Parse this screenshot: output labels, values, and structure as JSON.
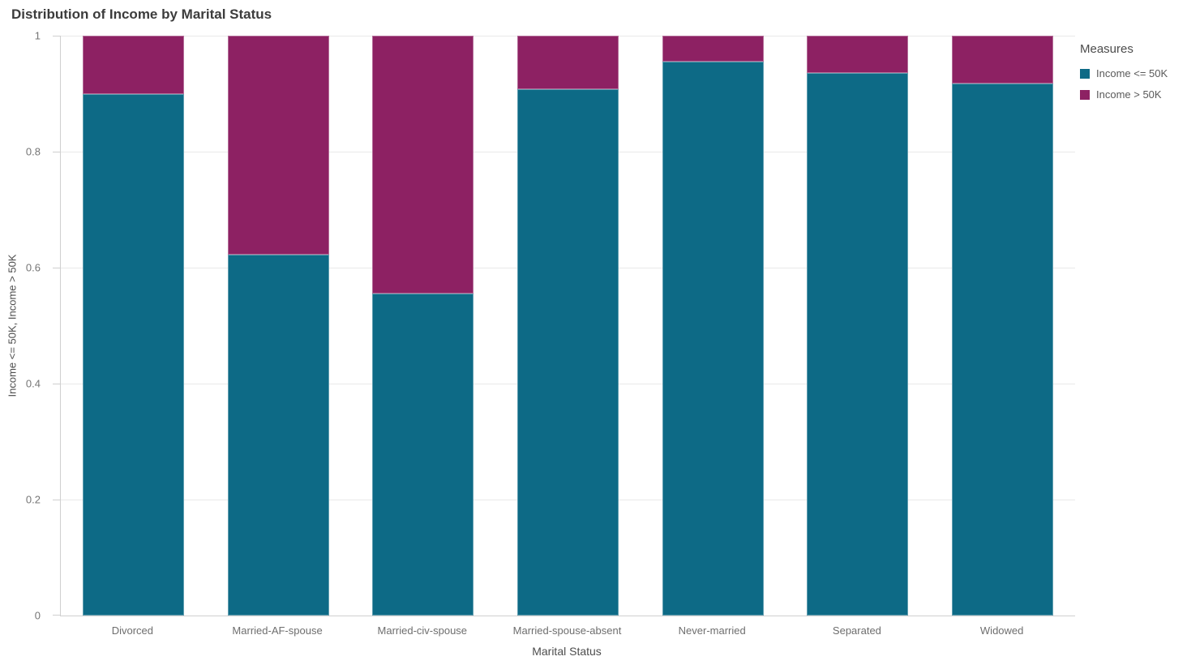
{
  "chart": {
    "title": "Distribution of Income by Marital Status",
    "x_axis_title": "Marital Status",
    "y_axis_title": "Income <= 50K, Income > 50K"
  },
  "legend": {
    "title": "Measures",
    "items": [
      {
        "label": "Income <= 50K",
        "color": "#0d6a86"
      },
      {
        "label": "Income > 50K",
        "color": "#8d2163"
      }
    ]
  },
  "chart_data": {
    "type": "bar",
    "subtype": "stacked-normalized",
    "title": "Distribution of Income by Marital Status",
    "xlabel": "Marital Status",
    "ylabel": "Income <= 50K, Income > 50K",
    "categories": [
      "Divorced",
      "Married-AF-spouse",
      "Married-civ-spouse",
      "Married-spouse-absent",
      "Never-married",
      "Separated",
      "Widowed"
    ],
    "series": [
      {
        "name": "Income <= 50K",
        "color": "#0d6a86",
        "values": [
          0.9,
          0.622,
          0.555,
          0.908,
          0.955,
          0.936,
          0.917
        ]
      },
      {
        "name": "Income > 50K",
        "color": "#8d2163",
        "values": [
          0.1,
          0.378,
          0.445,
          0.092,
          0.045,
          0.064,
          0.083
        ]
      }
    ],
    "ylim": [
      0,
      1
    ],
    "y_ticks": [
      0,
      0.2,
      0.4,
      0.6,
      0.8,
      1
    ],
    "y_tick_labels": [
      "0",
      "0.2",
      "0.4",
      "0.6",
      "0.8",
      "1"
    ],
    "grid": "horizontal",
    "legend_title": "Measures",
    "legend_position": "top-right",
    "bar_width_fraction": 0.7
  }
}
